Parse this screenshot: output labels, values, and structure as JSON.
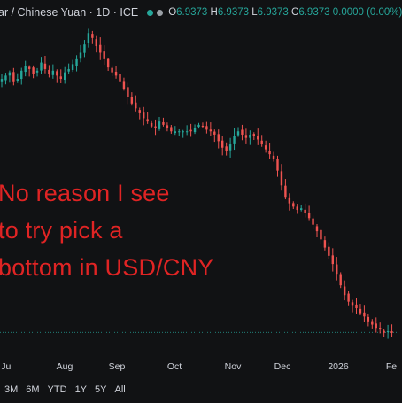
{
  "header": {
    "title": "ar / Chinese Yuan · 1D · ICE",
    "status_dots": [
      "#26a69a",
      "#9aa0a6"
    ],
    "ohlc": [
      {
        "key": "O",
        "value": "6.9373"
      },
      {
        "key": "H",
        "value": "6.9373"
      },
      {
        "key": "L",
        "value": "6.9373"
      },
      {
        "key": "C",
        "value": "6.9373"
      },
      {
        "key": "",
        "value": "0.0000 (0.00%)"
      }
    ]
  },
  "annotation": {
    "lines": [
      "No reason I see",
      "to try pick a",
      "bottom in USD/CNY"
    ],
    "color": "#e02424"
  },
  "range_buttons": [
    "3M",
    "6M",
    "YTD",
    "1Y",
    "5Y",
    "All"
  ],
  "colors": {
    "up": "#26a69a",
    "down": "#ef5350",
    "background": "#111214",
    "text": "#d1d4dc"
  },
  "chart_data": {
    "type": "candlestick",
    "x_tick_labels": [
      "Jul",
      "Aug",
      "Sep",
      "Oct",
      "Nov",
      "Dec",
      "2026",
      "Fe"
    ],
    "last_price": 6.9373,
    "price_line": "dotted",
    "series": [
      {
        "name": "USD/CNY",
        "close": [
          7.092,
          7.094,
          7.096,
          7.09,
          7.092,
          7.097,
          7.1,
          7.098,
          7.095,
          7.097,
          7.102,
          7.098,
          7.095,
          7.097,
          7.094,
          7.092,
          7.096,
          7.098,
          7.101,
          7.104,
          7.108,
          7.113,
          7.12,
          7.117,
          7.112,
          7.108,
          7.104,
          7.099,
          7.096,
          7.094,
          7.09,
          7.086,
          7.081,
          7.077,
          7.074,
          7.071,
          7.068,
          7.066,
          7.063,
          7.062,
          7.066,
          7.064,
          7.062,
          7.06,
          7.06,
          7.06,
          7.06,
          7.06,
          7.06,
          7.062,
          7.064,
          7.063,
          7.061,
          7.06,
          7.058,
          7.054,
          7.05,
          7.048,
          7.052,
          7.057,
          7.06,
          7.058,
          7.056,
          7.058,
          7.057,
          7.055,
          7.052,
          7.049,
          7.046,
          7.043,
          7.036,
          7.027,
          7.02,
          7.016,
          7.014,
          7.012,
          7.013,
          7.01,
          7.007,
          7.003,
          6.999,
          6.994,
          6.989,
          6.984,
          6.979,
          6.973,
          6.966,
          6.96,
          6.956,
          6.954,
          6.952,
          6.949,
          6.947,
          6.944,
          6.942,
          6.94,
          6.939,
          6.937,
          6.938,
          6.937
        ]
      }
    ]
  }
}
